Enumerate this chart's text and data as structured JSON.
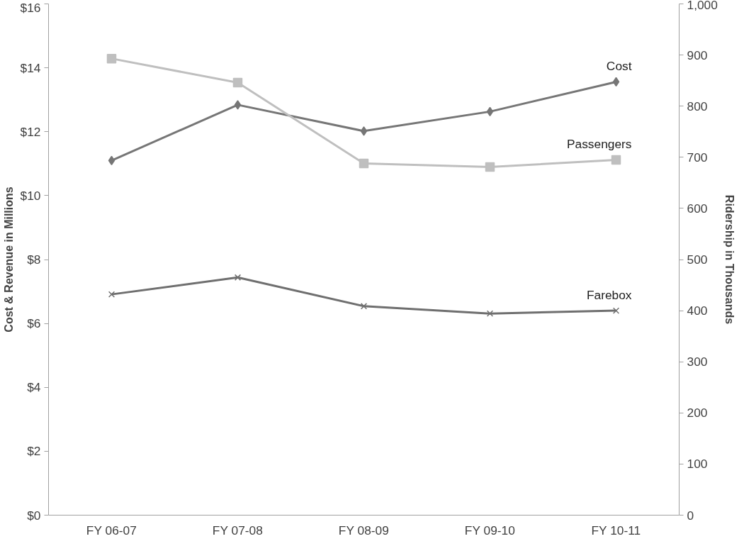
{
  "chart_data": {
    "type": "line",
    "categories": [
      "FY 06-07",
      "FY 07-08",
      "FY 08-09",
      "FY 09-10",
      "FY 10-11"
    ],
    "ylabel": "Cost & Revenue in Millions",
    "y2label": "Ridership in Thousands",
    "ylim": [
      0,
      16
    ],
    "yticks": [
      {
        "value": 0,
        "label": "$0"
      },
      {
        "value": 2,
        "label": "$2"
      },
      {
        "value": 4,
        "label": "$4"
      },
      {
        "value": 6,
        "label": "$6"
      },
      {
        "value": 8,
        "label": "$8"
      },
      {
        "value": 10,
        "label": "$10"
      },
      {
        "value": 12,
        "label": "$12"
      },
      {
        "value": 14,
        "label": "$14"
      },
      {
        "value": 16,
        "label": "$16"
      }
    ],
    "y2lim": [
      0,
      1000
    ],
    "y2ticks": [
      0,
      100,
      200,
      300,
      400,
      500,
      600,
      700,
      800,
      900,
      {
        "value": 1000,
        "label": "1,000"
      }
    ],
    "grid": false,
    "legend": false,
    "series": [
      {
        "name": "Cost",
        "color": "#767676",
        "marker": "diamond",
        "values": [
          11.1,
          12.84,
          12.02,
          12.63,
          13.56
        ]
      },
      {
        "name": "Passengers",
        "color": "#bfbfbf",
        "marker": "square",
        "axis": "y2",
        "values": [
          893,
          846,
          688,
          681,
          695
        ]
      },
      {
        "name": "Farebox",
        "color": "#6f6f6f",
        "marker": "cross",
        "values": [
          6.91,
          7.44,
          6.54,
          6.31,
          6.4
        ]
      }
    ]
  }
}
